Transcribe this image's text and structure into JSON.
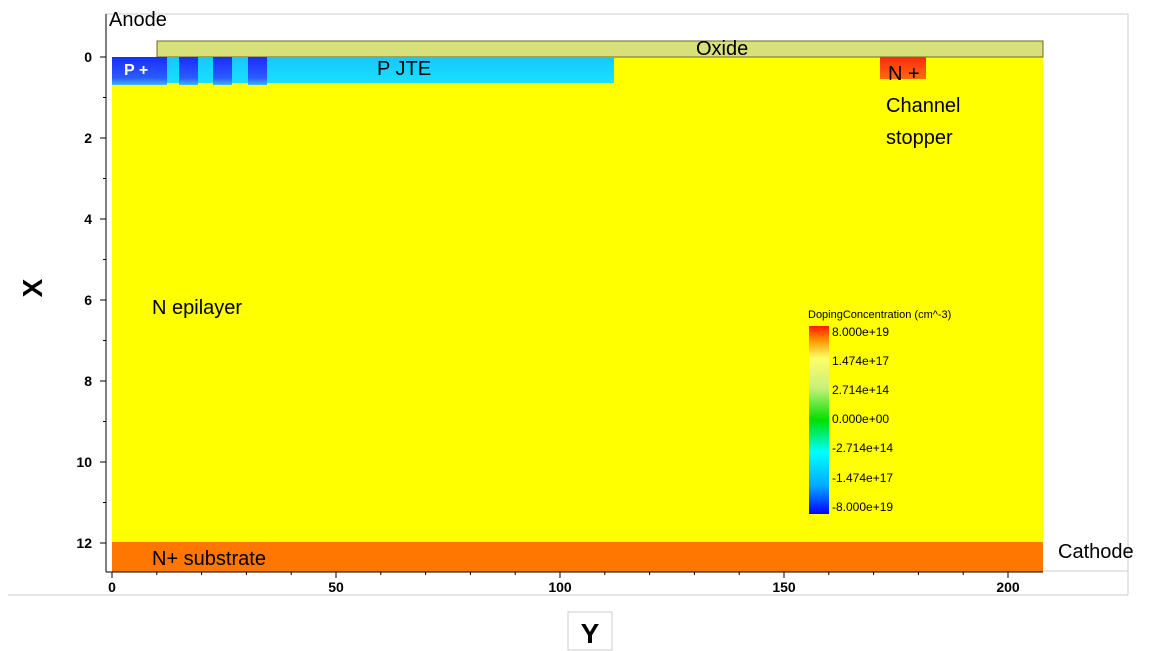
{
  "labels": {
    "anode": "Anode",
    "cathode": "Cathode",
    "oxide": "Oxide",
    "p_plus": "P +",
    "p_jte": "P JTE",
    "n_plus_top": "N +",
    "channel": "Channel",
    "stopper": "stopper",
    "n_epilayer": "N epilayer",
    "n_plus_substrate": "N+ substrate"
  },
  "axes": {
    "x_title": "X",
    "y_title": "Y",
    "x_ticks": [
      "0",
      "2",
      "4",
      "6",
      "8",
      "10",
      "12"
    ],
    "y_ticks": [
      "0",
      "50",
      "100",
      "150",
      "200"
    ]
  },
  "legend": {
    "title": "DopingConcentration (cm^-3)",
    "values": [
      "8.000e+19",
      "1.474e+17",
      "2.714e+14",
      "0.000e+00",
      "-2.714e+14",
      "-1.474e+17",
      "-8.000e+19"
    ]
  },
  "colors": {
    "epilayer": "#ffff00",
    "substrate": "#ff7700",
    "oxide": "#d8e07a",
    "p_plus": "#1a2cff",
    "p_ring": "#2b55ff",
    "p_jte": "#1ad2ff",
    "n_plus": "#ff3a12"
  }
}
